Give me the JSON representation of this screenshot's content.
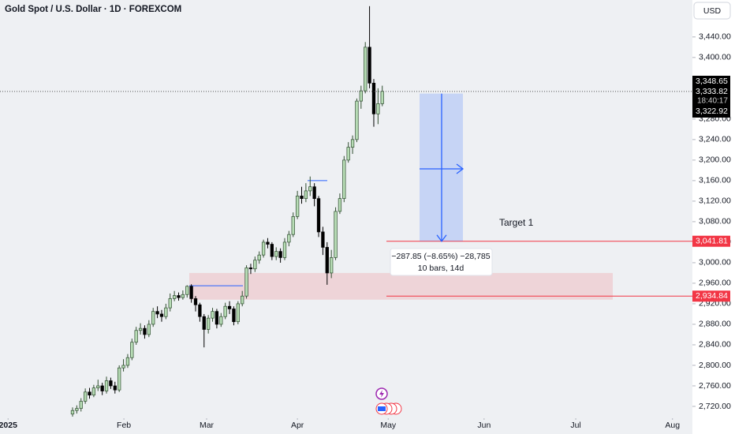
{
  "chart_data": {
    "type": "candlestick",
    "title": "Gold Spot / U.S. Dollar · 1D · FOREXCOM",
    "currency": "USD",
    "xlim": [
      -17.1,
      146.1
    ],
    "xticks": [
      {
        "value": -15.2,
        "label": "2025"
      },
      {
        "value": 12.1,
        "label": "Feb"
      },
      {
        "value": 31.6,
        "label": "Mar"
      },
      {
        "value": 53.0,
        "label": "Apr"
      },
      {
        "value": 74.4,
        "label": "May"
      },
      {
        "value": 97.0,
        "label": "Jun"
      },
      {
        "value": 118.6,
        "label": "Jul"
      },
      {
        "value": 141.4,
        "label": "Aug"
      }
    ],
    "ylim": [
      2700,
      3512
    ],
    "yticks": [
      {
        "value": 2720,
        "label": "2,720.00"
      },
      {
        "value": 2760,
        "label": "2,760.00"
      },
      {
        "value": 2800,
        "label": "2,800.00"
      },
      {
        "value": 2840,
        "label": "2,840.00"
      },
      {
        "value": 2880,
        "label": "2,880.00"
      },
      {
        "value": 2920,
        "label": "2,920.00"
      },
      {
        "value": 2960,
        "label": "2,960.00"
      },
      {
        "value": 3000,
        "label": "3,000.00"
      },
      {
        "value": 3040,
        "label": "3,040.00"
      },
      {
        "value": 3080,
        "label": "3,080.00"
      },
      {
        "value": 3120,
        "label": "3,120.00"
      },
      {
        "value": 3160,
        "label": "3,160.00"
      },
      {
        "value": 3200,
        "label": "3,200.00"
      },
      {
        "value": 3240,
        "label": "3,240.00"
      },
      {
        "value": 3280,
        "label": "3,280.00"
      },
      {
        "value": 3400,
        "label": "3,400.00"
      },
      {
        "value": 3440,
        "label": "3,440.00"
      }
    ],
    "up_color": "#b7dcb5",
    "down_color": "#000000",
    "open": [
      2705,
      2712,
      2716,
      2730,
      2748,
      2742,
      2756,
      2760,
      2750,
      2770,
      2760,
      2752,
      2795,
      2800,
      2815,
      2845,
      2868,
      2872,
      2860,
      2880,
      2905,
      2900,
      2895,
      2912,
      2930,
      2936,
      2932,
      2938,
      2954,
      2930,
      2918,
      2895,
      2870,
      2892,
      2905,
      2880,
      2895,
      2915,
      2910,
      2885,
      2920,
      2935,
      2990,
      2988,
      3005,
      3015,
      3040,
      3036,
      3012,
      3022,
      3010,
      3040,
      3055,
      3090,
      3130,
      3125,
      3140,
      3148,
      3125,
      3060,
      3030,
      2980,
      3010,
      3100,
      3125,
      3200,
      3225,
      3240,
      3315,
      3335,
      3420,
      3350,
      3290,
      3310
    ],
    "high": [
      2718,
      2722,
      2736,
      2755,
      2756,
      2762,
      2772,
      2766,
      2778,
      2776,
      2768,
      2800,
      2812,
      2822,
      2852,
      2875,
      2882,
      2878,
      2888,
      2912,
      2915,
      2908,
      2920,
      2940,
      2945,
      2942,
      2946,
      2956,
      2958,
      2935,
      2922,
      2900,
      2898,
      2912,
      2910,
      2902,
      2922,
      2925,
      2915,
      2925,
      2945,
      2995,
      2998,
      3012,
      3022,
      3045,
      3048,
      3040,
      3030,
      3028,
      3048,
      3062,
      3098,
      3140,
      3148,
      3155,
      3168,
      3155,
      3130,
      3070,
      3040,
      3025,
      3108,
      3135,
      3208,
      3235,
      3248,
      3320,
      3345,
      3430,
      3500,
      3358,
      3340,
      3345
    ],
    "low": [
      2700,
      2706,
      2710,
      2725,
      2735,
      2738,
      2750,
      2742,
      2745,
      2754,
      2745,
      2748,
      2788,
      2795,
      2810,
      2840,
      2860,
      2852,
      2855,
      2875,
      2892,
      2885,
      2890,
      2905,
      2925,
      2926,
      2928,
      2932,
      2922,
      2905,
      2885,
      2835,
      2862,
      2885,
      2872,
      2875,
      2890,
      2900,
      2878,
      2880,
      2915,
      2930,
      2978,
      2982,
      2998,
      3010,
      3028,
      3005,
      3005,
      3000,
      3005,
      3032,
      3050,
      3085,
      3115,
      3118,
      3130,
      3110,
      3050,
      3015,
      2957,
      2970,
      3005,
      3095,
      3118,
      3195,
      3212,
      3235,
      3300,
      3330,
      3340,
      3265,
      3270,
      3305
    ],
    "close": [
      2712,
      2716,
      2730,
      2748,
      2742,
      2756,
      2760,
      2750,
      2770,
      2760,
      2752,
      2795,
      2800,
      2815,
      2845,
      2868,
      2872,
      2860,
      2880,
      2905,
      2900,
      2895,
      2912,
      2930,
      2936,
      2932,
      2938,
      2954,
      2930,
      2918,
      2895,
      2870,
      2892,
      2905,
      2880,
      2895,
      2915,
      2910,
      2885,
      2920,
      2935,
      2990,
      2988,
      3005,
      3015,
      3040,
      3036,
      3012,
      3022,
      3010,
      3040,
      3055,
      3090,
      3130,
      3125,
      3140,
      3148,
      3125,
      3060,
      3030,
      2980,
      3010,
      3100,
      3125,
      3200,
      3225,
      3240,
      3315,
      3335,
      3420,
      3350,
      3290,
      3310,
      3334
    ],
    "current_price": {
      "value": 3333.82,
      "label": "3,333.82",
      "countdown": "18:40:17"
    },
    "price_labels": [
      {
        "value": 3348.65,
        "label": "3,348.65"
      },
      {
        "value": 3322.92,
        "label": "3,322.92"
      }
    ],
    "levels": [
      {
        "value": 3041.81,
        "label": "3,041.81",
        "color": "#f23645"
      },
      {
        "value": 2934.84,
        "label": "2,934.84",
        "color": "#f23645"
      }
    ],
    "zone": [
      2928,
      2980
    ],
    "guide_lines": [
      3160,
      2955
    ],
    "measure": {
      "start": 3329.66,
      "end": 3041.81,
      "label": "−287.85 (−8.65%) −28,785",
      "detail": "10 bars, 14d"
    },
    "target_label": "Target 1"
  }
}
